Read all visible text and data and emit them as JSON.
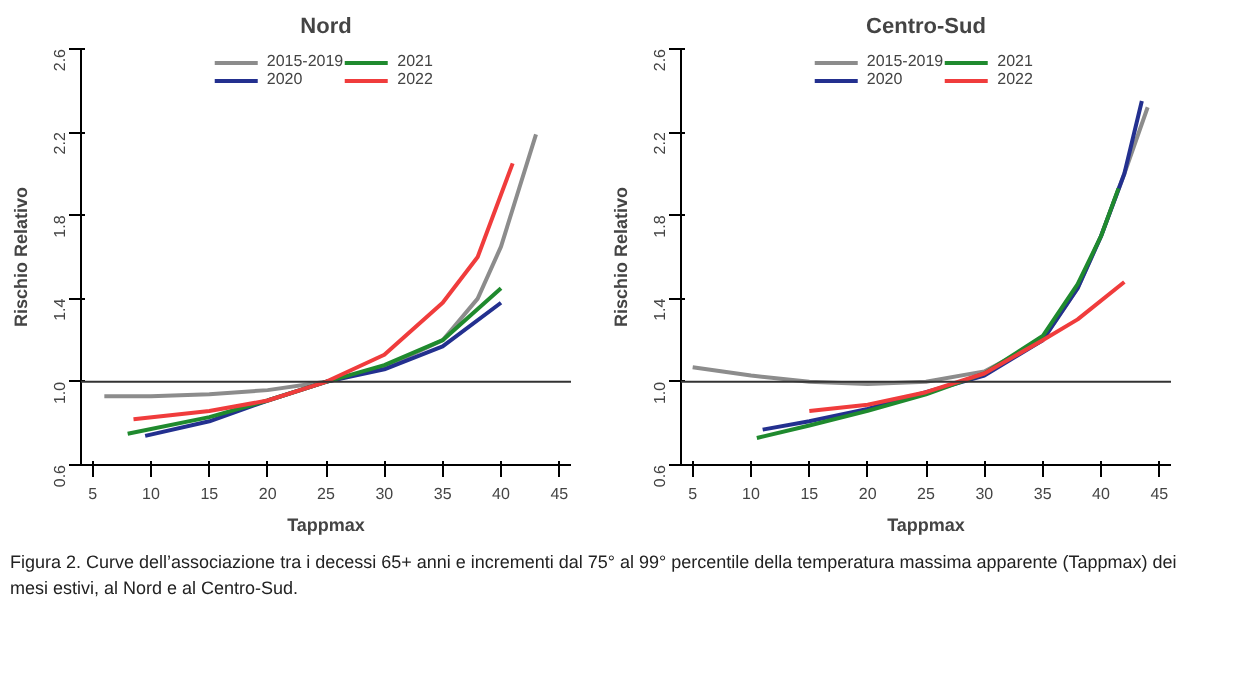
{
  "chart_data": [
    {
      "type": "line",
      "title": "Nord",
      "xlabel": "Tappmax",
      "ylabel": "Rischio Relativo",
      "xlim": [
        4,
        46
      ],
      "ylim": [
        0.6,
        2.6
      ],
      "xticks": [
        5,
        10,
        15,
        20,
        25,
        30,
        35,
        40,
        45
      ],
      "yticks": [
        {
          "value": 0.6,
          "label": "0.6"
        },
        {
          "value": 1.0,
          "label": "1.0"
        },
        {
          "value": 1.4,
          "label": "1.4"
        },
        {
          "value": 1.8,
          "label": "1.8"
        },
        {
          "value": 2.2,
          "label": "2.2"
        },
        {
          "value": 2.6,
          "label": "2.6"
        }
      ],
      "grid": false,
      "legend": "top",
      "line_style": "solid",
      "ref_lines": [
        {
          "axis": "y",
          "value": 1.0,
          "color": "#333333"
        }
      ],
      "series": [
        {
          "name": "2015-2019",
          "color": "#8c8c8c",
          "x": [
            6,
            10,
            15,
            20,
            25,
            30,
            35,
            38,
            40,
            43
          ],
          "values": [
            0.93,
            0.93,
            0.94,
            0.96,
            1.0,
            1.07,
            1.2,
            1.4,
            1.65,
            2.19
          ]
        },
        {
          "name": "2020",
          "color": "#23308f",
          "x": [
            9.5,
            15,
            20,
            25,
            30,
            35,
            40
          ],
          "values": [
            0.74,
            0.81,
            0.91,
            1.0,
            1.06,
            1.17,
            1.38
          ]
        },
        {
          "name": "2021",
          "color": "#1f8a2e",
          "x": [
            8,
            15,
            20,
            25,
            30,
            35,
            40
          ],
          "values": [
            0.75,
            0.83,
            0.91,
            1.0,
            1.08,
            1.2,
            1.45
          ]
        },
        {
          "name": "2022",
          "color": "#f03c3c",
          "x": [
            8.5,
            15,
            20,
            25,
            30,
            35,
            38,
            41
          ],
          "values": [
            0.82,
            0.86,
            0.91,
            1.0,
            1.13,
            1.38,
            1.6,
            2.05
          ]
        }
      ]
    },
    {
      "type": "line",
      "title": "Centro-Sud",
      "xlabel": "Tappmax",
      "ylabel": "Rischio Relativo",
      "xlim": [
        4,
        46
      ],
      "ylim": [
        0.6,
        2.6
      ],
      "xticks": [
        5,
        10,
        15,
        20,
        25,
        30,
        35,
        40,
        45
      ],
      "yticks": [
        {
          "value": 0.6,
          "label": "0.6"
        },
        {
          "value": 1.0,
          "label": "1.0"
        },
        {
          "value": 1.4,
          "label": "1.4"
        },
        {
          "value": 1.8,
          "label": "1.8"
        },
        {
          "value": 2.2,
          "label": "2.2"
        },
        {
          "value": 2.6,
          "label": "2.6"
        }
      ],
      "grid": false,
      "legend": "top",
      "line_style": "solid",
      "ref_lines": [
        {
          "axis": "y",
          "value": 1.0,
          "color": "#333333"
        }
      ],
      "series": [
        {
          "name": "2015-2019",
          "color": "#8c8c8c",
          "x": [
            5,
            10,
            15,
            20,
            25,
            30,
            35,
            38,
            40,
            42,
            44
          ],
          "values": [
            1.07,
            1.03,
            1.0,
            0.99,
            1.0,
            1.05,
            1.2,
            1.45,
            1.7,
            2.0,
            2.32
          ]
        },
        {
          "name": "2020",
          "color": "#23308f",
          "x": [
            11,
            15,
            20,
            25,
            30,
            35,
            38,
            40,
            42,
            43.5
          ],
          "values": [
            0.77,
            0.81,
            0.87,
            0.95,
            1.03,
            1.2,
            1.45,
            1.7,
            2.0,
            2.35
          ]
        },
        {
          "name": "2021",
          "color": "#1f8a2e",
          "x": [
            10.5,
            15,
            20,
            25,
            30,
            35,
            38,
            40,
            41.5
          ],
          "values": [
            0.73,
            0.79,
            0.86,
            0.94,
            1.04,
            1.22,
            1.47,
            1.7,
            1.93
          ]
        },
        {
          "name": "2022",
          "color": "#f03c3c",
          "x": [
            15,
            20,
            25,
            30,
            35,
            38,
            42
          ],
          "values": [
            0.86,
            0.89,
            0.95,
            1.04,
            1.2,
            1.3,
            1.48
          ]
        }
      ],
      "annotations": [
        "Figura 2. Curve dell’associazione tra i decessi 65+ anni e incrementi dal 75° al 99° percentile della temperatura massima apparente (Tappmax) dei mesi estivi, al Nord e al Centro-Sud."
      ]
    }
  ]
}
